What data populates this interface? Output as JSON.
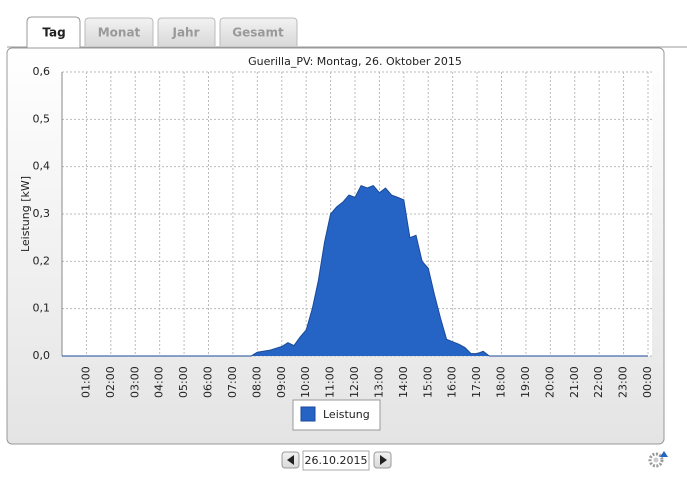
{
  "tabs": [
    "Tag",
    "Monat",
    "Jahr",
    "Gesamt"
  ],
  "date": "26.10.2015",
  "chart_data": {
    "type": "area",
    "title": "Guerilla_PV: Montag, 26. Oktober 2015",
    "y_label": "Leistung [kW]",
    "x": [
      0,
      7.75,
      8,
      8.5,
      9,
      9.25,
      9.5,
      9.75,
      10,
      10.25,
      10.5,
      10.75,
      11,
      11.25,
      11.5,
      11.75,
      12,
      12.25,
      12.5,
      12.75,
      13,
      13.25,
      13.5,
      13.75,
      14,
      14.25,
      14.5,
      14.75,
      15,
      15.25,
      15.5,
      15.75,
      16,
      16.25,
      16.5,
      16.75,
      17,
      17.25,
      17.5,
      17.75,
      24
    ],
    "series": [
      {
        "name": "Leistung",
        "color": "#2563c4",
        "values": [
          0,
          0,
          0.008,
          0.012,
          0.02,
          0.028,
          0.022,
          0.04,
          0.055,
          0.1,
          0.16,
          0.24,
          0.3,
          0.315,
          0.325,
          0.34,
          0.335,
          0.36,
          0.355,
          0.36,
          0.345,
          0.355,
          0.34,
          0.335,
          0.33,
          0.25,
          0.255,
          0.2,
          0.185,
          0.13,
          0.08,
          0.035,
          0.03,
          0.025,
          0.018,
          0.005,
          0.005,
          0.01,
          0,
          0,
          0
        ]
      }
    ],
    "xlim": [
      0,
      24
    ],
    "xticks": [
      {
        "value": 1,
        "label": "01:00"
      },
      {
        "value": 2,
        "label": "02:00"
      },
      {
        "value": 3,
        "label": "03:00"
      },
      {
        "value": 4,
        "label": "04:00"
      },
      {
        "value": 5,
        "label": "05:00"
      },
      {
        "value": 6,
        "label": "06:00"
      },
      {
        "value": 7,
        "label": "07:00"
      },
      {
        "value": 8,
        "label": "08:00"
      },
      {
        "value": 9,
        "label": "09:00"
      },
      {
        "value": 10,
        "label": "10:00"
      },
      {
        "value": 11,
        "label": "11:00"
      },
      {
        "value": 12,
        "label": "12:00"
      },
      {
        "value": 13,
        "label": "13:00"
      },
      {
        "value": 14,
        "label": "14:00"
      },
      {
        "value": 15,
        "label": "15:00"
      },
      {
        "value": 16,
        "label": "16:00"
      },
      {
        "value": 17,
        "label": "17:00"
      },
      {
        "value": 18,
        "label": "18:00"
      },
      {
        "value": 19,
        "label": "19:00"
      },
      {
        "value": 20,
        "label": "20:00"
      },
      {
        "value": 21,
        "label": "21:00"
      },
      {
        "value": 22,
        "label": "22:00"
      },
      {
        "value": 23,
        "label": "23:00"
      },
      {
        "value": 24,
        "label": "00:00"
      }
    ],
    "ylim": [
      0,
      0.6
    ],
    "yticks": [
      {
        "value": 0,
        "label": "0,0"
      },
      {
        "value": 0.1,
        "label": "0,1"
      },
      {
        "value": 0.2,
        "label": "0,2"
      },
      {
        "value": 0.3,
        "label": "0,3"
      },
      {
        "value": 0.4,
        "label": "0,4"
      },
      {
        "value": 0.5,
        "label": "0,5"
      },
      {
        "value": 0.6,
        "label": "0,6"
      }
    ],
    "grid": true
  }
}
